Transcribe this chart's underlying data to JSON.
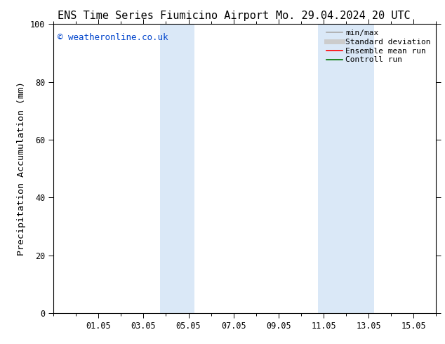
{
  "title_left": "ENS Time Series Fiumicino Airport",
  "title_right": "Mo. 29.04.2024 20 UTC",
  "ylabel": "Precipitation Accumulation (mm)",
  "ylim": [
    0,
    100
  ],
  "yticks": [
    0,
    20,
    40,
    60,
    80,
    100
  ],
  "xtick_positions": [
    2,
    4,
    6,
    8,
    10,
    12,
    14,
    16
  ],
  "xtick_labels": [
    "01.05",
    "03.05",
    "05.05",
    "07.05",
    "09.05",
    "11.05",
    "13.05",
    "15.05"
  ],
  "xlim": [
    0,
    17
  ],
  "background_color": "#ffffff",
  "plot_bg_color": "#ffffff",
  "shaded_bands": [
    {
      "x_start": 4.75,
      "x_end": 5.25,
      "color": "#dae8f7"
    },
    {
      "x_start": 5.25,
      "x_end": 6.25,
      "color": "#dae8f7"
    },
    {
      "x_start": 11.75,
      "x_end": 12.25,
      "color": "#dae8f7"
    },
    {
      "x_start": 12.25,
      "x_end": 14.25,
      "color": "#dae8f7"
    }
  ],
  "watermark_text": "© weatheronline.co.uk",
  "watermark_color": "#0044cc",
  "legend_items": [
    {
      "label": "min/max",
      "color": "#aaaaaa",
      "lw": 1.2
    },
    {
      "label": "Standard deviation",
      "color": "#cccccc",
      "lw": 5
    },
    {
      "label": "Ensemble mean run",
      "color": "#ff0000",
      "lw": 1.2
    },
    {
      "label": "Controll run",
      "color": "#007700",
      "lw": 1.2
    }
  ],
  "title_fontsize": 11,
  "tick_fontsize": 8.5,
  "label_fontsize": 9.5,
  "legend_fontsize": 8,
  "watermark_fontsize": 9
}
